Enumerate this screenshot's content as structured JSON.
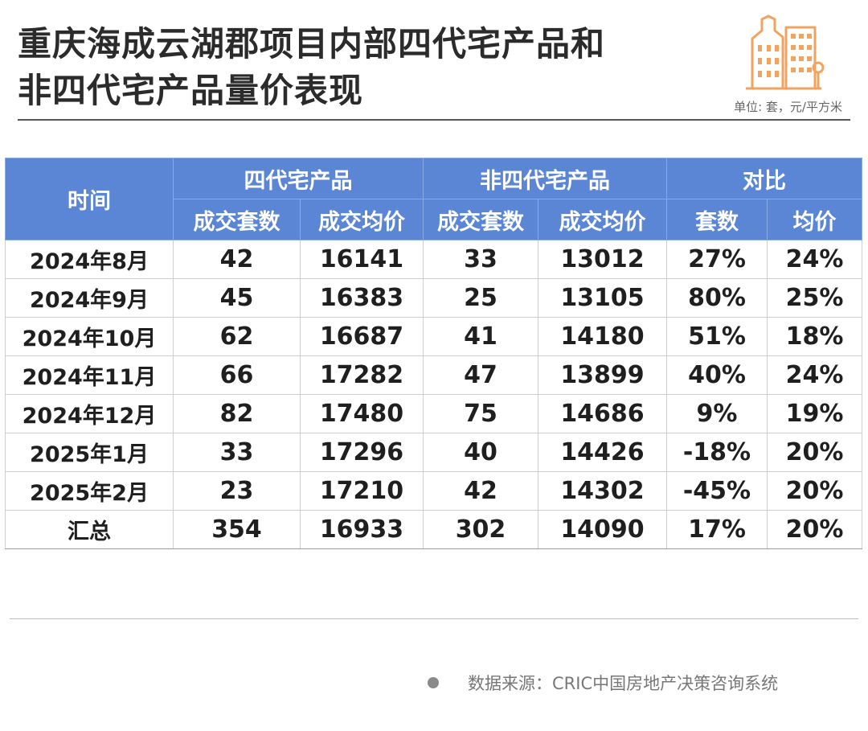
{
  "title": {
    "line1": "重庆海成云湖郡项目内部四代宅产品和",
    "line2": "非四代宅产品量价表现"
  },
  "unit_note": "单位: 套，元/平方米",
  "colors": {
    "header_bg": "#5b86d6",
    "positive": "#c8161d",
    "negative": "#1fa23c",
    "icon_accent": "#f2a35f"
  },
  "table": {
    "col_time": "时间",
    "group1": "四代宅产品",
    "group2": "非四代宅产品",
    "group3": "对比",
    "sub": [
      "成交套数",
      "成交均价",
      "成交套数",
      "成交均价",
      "套数",
      "均价"
    ],
    "rows": [
      {
        "month": "2024年8月",
        "g4_units": "42",
        "g4_price": "16141",
        "ng_units": "33",
        "ng_price": "13012",
        "cmp_units": "27%",
        "cmp_price": "24%"
      },
      {
        "month": "2024年9月",
        "g4_units": "45",
        "g4_price": "16383",
        "ng_units": "25",
        "ng_price": "13105",
        "cmp_units": "80%",
        "cmp_price": "25%"
      },
      {
        "month": "2024年10月",
        "g4_units": "62",
        "g4_price": "16687",
        "ng_units": "41",
        "ng_price": "14180",
        "cmp_units": "51%",
        "cmp_price": "18%"
      },
      {
        "month": "2024年11月",
        "g4_units": "66",
        "g4_price": "17282",
        "ng_units": "47",
        "ng_price": "13899",
        "cmp_units": "40%",
        "cmp_price": "24%"
      },
      {
        "month": "2024年12月",
        "g4_units": "82",
        "g4_price": "17480",
        "ng_units": "75",
        "ng_price": "14686",
        "cmp_units": "9%",
        "cmp_price": "19%"
      },
      {
        "month": "2025年1月",
        "g4_units": "33",
        "g4_price": "17296",
        "ng_units": "40",
        "ng_price": "14426",
        "cmp_units": "-18%",
        "cmp_price": "20%"
      },
      {
        "month": "2025年2月",
        "g4_units": "23",
        "g4_price": "17210",
        "ng_units": "42",
        "ng_price": "14302",
        "cmp_units": "-45%",
        "cmp_price": "20%"
      },
      {
        "month": "汇总",
        "g4_units": "354",
        "g4_price": "16933",
        "ng_units": "302",
        "ng_price": "14090",
        "cmp_units": "17%",
        "cmp_price": "20%"
      }
    ]
  },
  "source": "数据来源：CRIC中国房地产决策咨询系统",
  "icons": [
    "building-icon",
    "bullet-dot-icon"
  ]
}
